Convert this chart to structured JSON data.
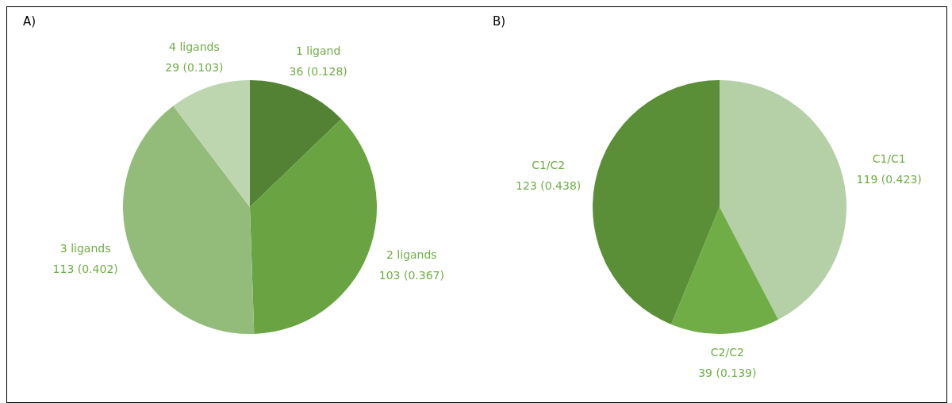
{
  "chart_data": [
    {
      "type": "pie",
      "title": "A)",
      "categories": [
        "1 ligand",
        "2 ligands",
        "3 ligands",
        "4 ligands"
      ],
      "values": [
        36,
        103,
        113,
        29
      ],
      "colors": [
        "#548235",
        "#6aa342",
        "#93bb7a",
        "#bdd6b0"
      ],
      "value_labels": [
        "36 (0.128)",
        "103 (0.367)",
        "113 (0.402)",
        "29 (0.103)"
      ],
      "legend": false
    },
    {
      "type": "pie",
      "title": "B)",
      "categories": [
        "C1/C1",
        "C2/C2",
        "C1/C2"
      ],
      "values": [
        119,
        39,
        123
      ],
      "colors": [
        "#b5cfa7",
        "#70ad47",
        "#5b8f37"
      ],
      "value_labels": [
        "119 (0.423)",
        "39 (0.139)",
        "123 (0.438)"
      ],
      "legend": false
    }
  ]
}
